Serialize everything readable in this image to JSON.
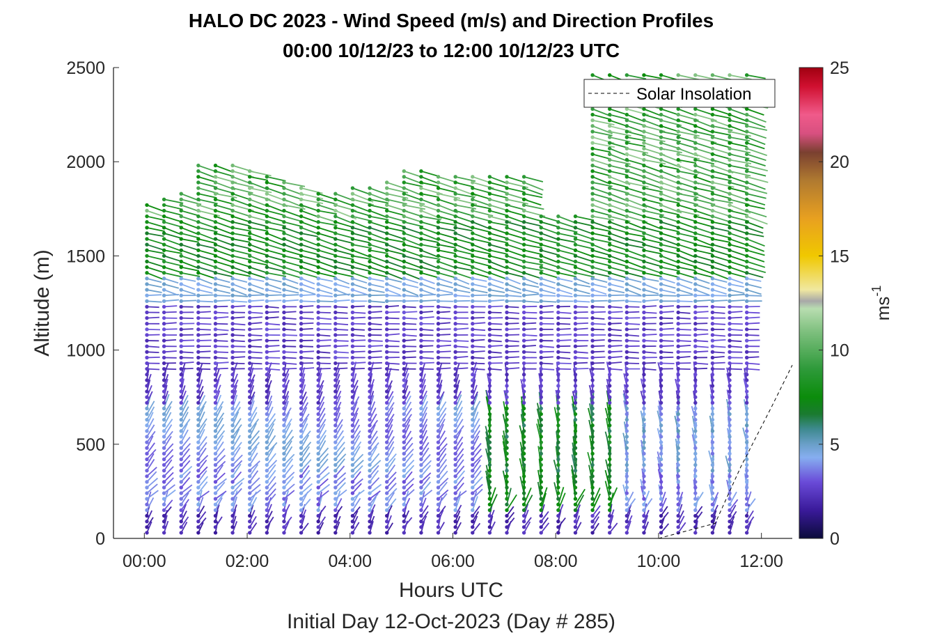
{
  "chart_data": {
    "type": "wind-barb-profile",
    "title": "HALO DC 2023 - Wind Speed (m/s) and Direction Profiles",
    "subtitle": "00:00 10/12/23 to 12:00 10/12/23  UTC",
    "xlabel": "Hours UTC",
    "xlabel2": "Initial Day 12-Oct-2023 (Day # 285)",
    "ylabel": "Altitude (m)",
    "x_unit": "hours UTC",
    "xlim": [
      -0.6,
      12.6
    ],
    "ylim": [
      0,
      2500
    ],
    "x_ticks": [
      0,
      2,
      4,
      6,
      8,
      10,
      12
    ],
    "x_tick_labels": [
      "00:00",
      "02:00",
      "04:00",
      "06:00",
      "08:00",
      "10:00",
      "12:00"
    ],
    "y_ticks": [
      0,
      500,
      1000,
      1500,
      2000,
      2500
    ],
    "y_tick_labels": [
      "0",
      "500",
      "1000",
      "1500",
      "2000",
      "2500"
    ],
    "colorbar": {
      "label": "ms",
      "label_superscript": "-1",
      "range": [
        0,
        25
      ],
      "ticks": [
        0,
        5,
        10,
        15,
        20,
        25
      ],
      "tick_labels": [
        "0",
        "5",
        "10",
        "15",
        "20",
        "25"
      ],
      "stops": [
        {
          "v": 0,
          "color": "#0b0b3b"
        },
        {
          "v": 1.5,
          "color": "#3a1a9a"
        },
        {
          "v": 3,
          "color": "#6a4bd8"
        },
        {
          "v": 4.3,
          "color": "#86aef0"
        },
        {
          "v": 5,
          "color": "#6a9fc8"
        },
        {
          "v": 5.8,
          "color": "#3e8a90"
        },
        {
          "v": 6.6,
          "color": "#1a7a30"
        },
        {
          "v": 7.5,
          "color": "#0b8c0b"
        },
        {
          "v": 9,
          "color": "#2e9a3a"
        },
        {
          "v": 11,
          "color": "#7fc07f"
        },
        {
          "v": 12.2,
          "color": "#b8ddb0"
        },
        {
          "v": 12.6,
          "color": "#a8a8a8"
        },
        {
          "v": 13.2,
          "color": "#f0e8a0"
        },
        {
          "v": 15,
          "color": "#f0c800"
        },
        {
          "v": 17,
          "color": "#e8a020"
        },
        {
          "v": 19,
          "color": "#b07a30"
        },
        {
          "v": 20.5,
          "color": "#7a4030"
        },
        {
          "v": 21.5,
          "color": "#d85080"
        },
        {
          "v": 22.5,
          "color": "#f05a8a"
        },
        {
          "v": 24,
          "color": "#d01030"
        },
        {
          "v": 25,
          "color": "#a00010"
        }
      ]
    },
    "legend": {
      "entries": [
        "Solar Insolation"
      ],
      "placement": "top-right",
      "line_style": "dashed",
      "line_color": "#000000"
    },
    "solar_insolation": {
      "x": [
        -0.6,
        0,
        2,
        4,
        6,
        8,
        10,
        11.1,
        11.6,
        12.2,
        12.6
      ],
      "y": [
        0,
        0,
        0,
        0,
        0,
        0,
        0,
        80,
        380,
        700,
        920
      ]
    },
    "profiles": {
      "time_start_hours": 0.05,
      "time_step_hours": 0.3333,
      "count": 36,
      "altitude_step_m": 30
    }
  }
}
